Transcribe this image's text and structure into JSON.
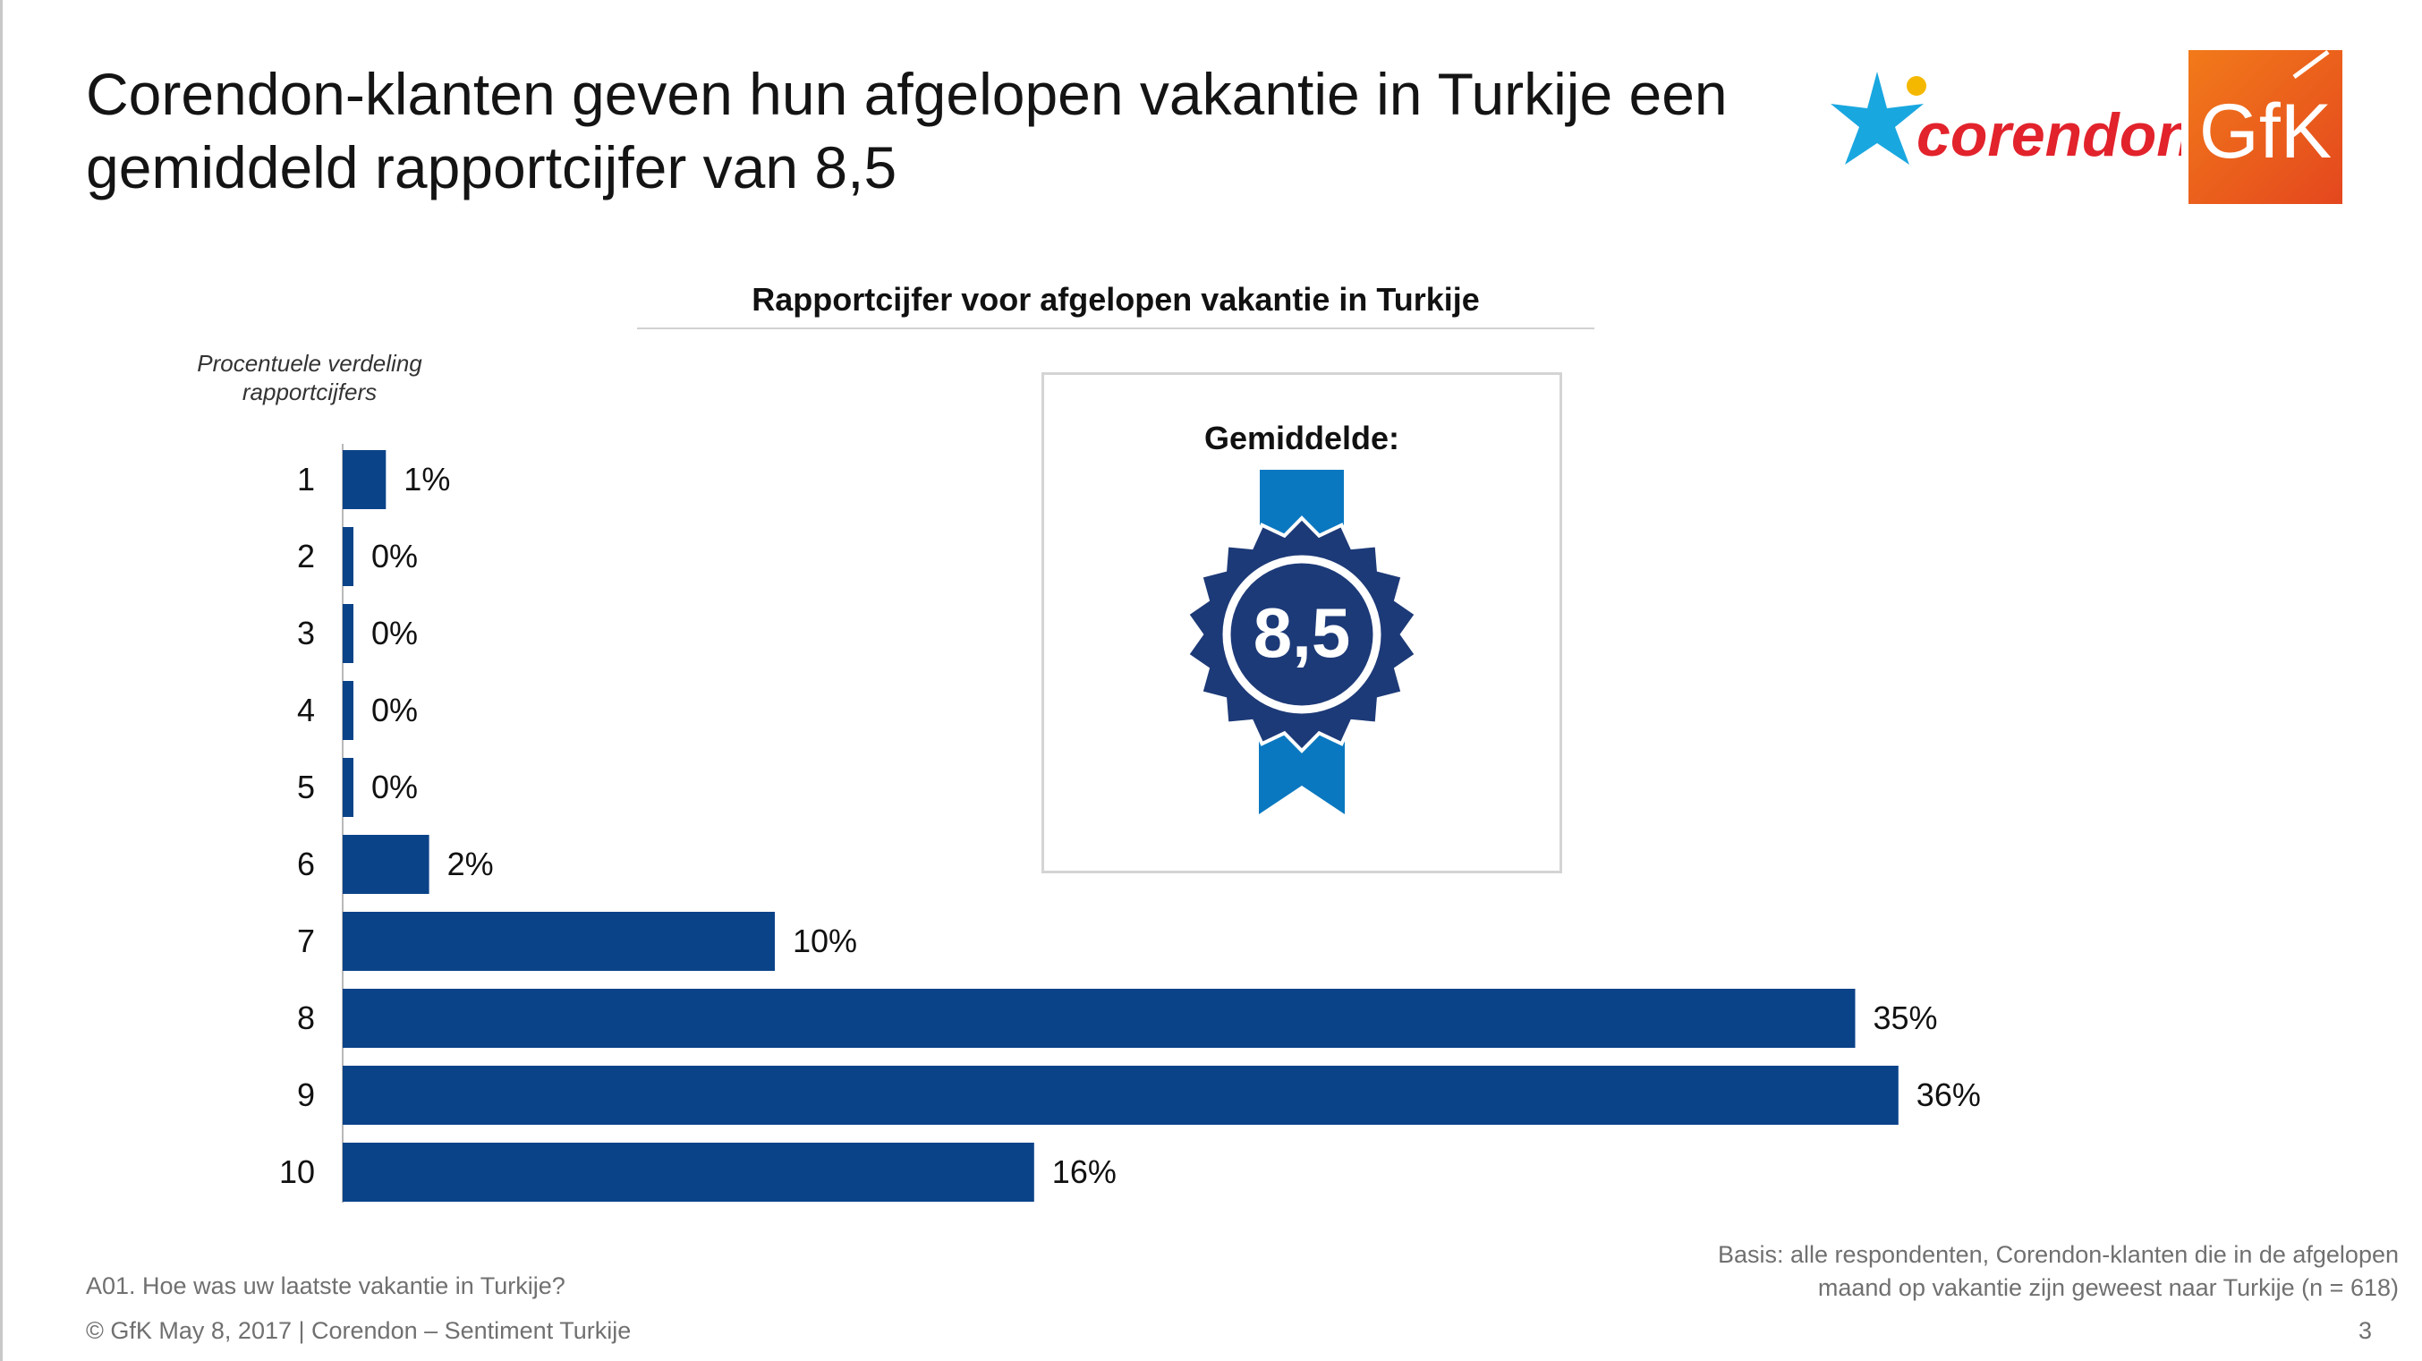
{
  "slide": {
    "title": "Corendon-klanten geven hun afgelopen vakantie in Turkije een gemiddeld rapportcijfer van 8,5",
    "logos": {
      "corendon": "corendon",
      "gfk": "GfK"
    },
    "footer": {
      "question": "A01. Hoe was uw laatste vakantie in Turkije?",
      "copyright": "© GfK May 8, 2017 | Corendon – Sentiment Turkije",
      "basis": [
        "Basis: alle respondenten, Corendon-klanten die in de afgelopen",
        "maand op vakantie zijn geweest naar Turkije (n = 618)"
      ],
      "page_number": "3"
    },
    "badge": {
      "label": "Gemiddelde:",
      "value": "8,5"
    }
  },
  "colors": {
    "bar": "#0b4389",
    "badge_dark": "#1d3a78",
    "badge_ribbon": "#0a78c0",
    "corendon_star": "#19a7e0",
    "corendon_dot": "#f5b800",
    "corendon_text": "#e2232c",
    "gfk": "#ef5a1c"
  },
  "chart_data": {
    "type": "bar",
    "orientation": "horizontal",
    "title": "Rapportcijfer voor afgelopen vakantie in Turkije",
    "ylabel": "Procentuele verdeling rapportcijfers",
    "categories": [
      "1",
      "2",
      "3",
      "4",
      "5",
      "6",
      "7",
      "8",
      "9",
      "10"
    ],
    "values": [
      1,
      0,
      0,
      0,
      0,
      2,
      10,
      35,
      36,
      16
    ],
    "value_labels": [
      "1%",
      "0%",
      "0%",
      "0%",
      "0%",
      "2%",
      "10%",
      "35%",
      "36%",
      "16%"
    ],
    "unit": "%",
    "xlim": [
      0,
      36
    ],
    "grid": false,
    "legend": "none"
  }
}
